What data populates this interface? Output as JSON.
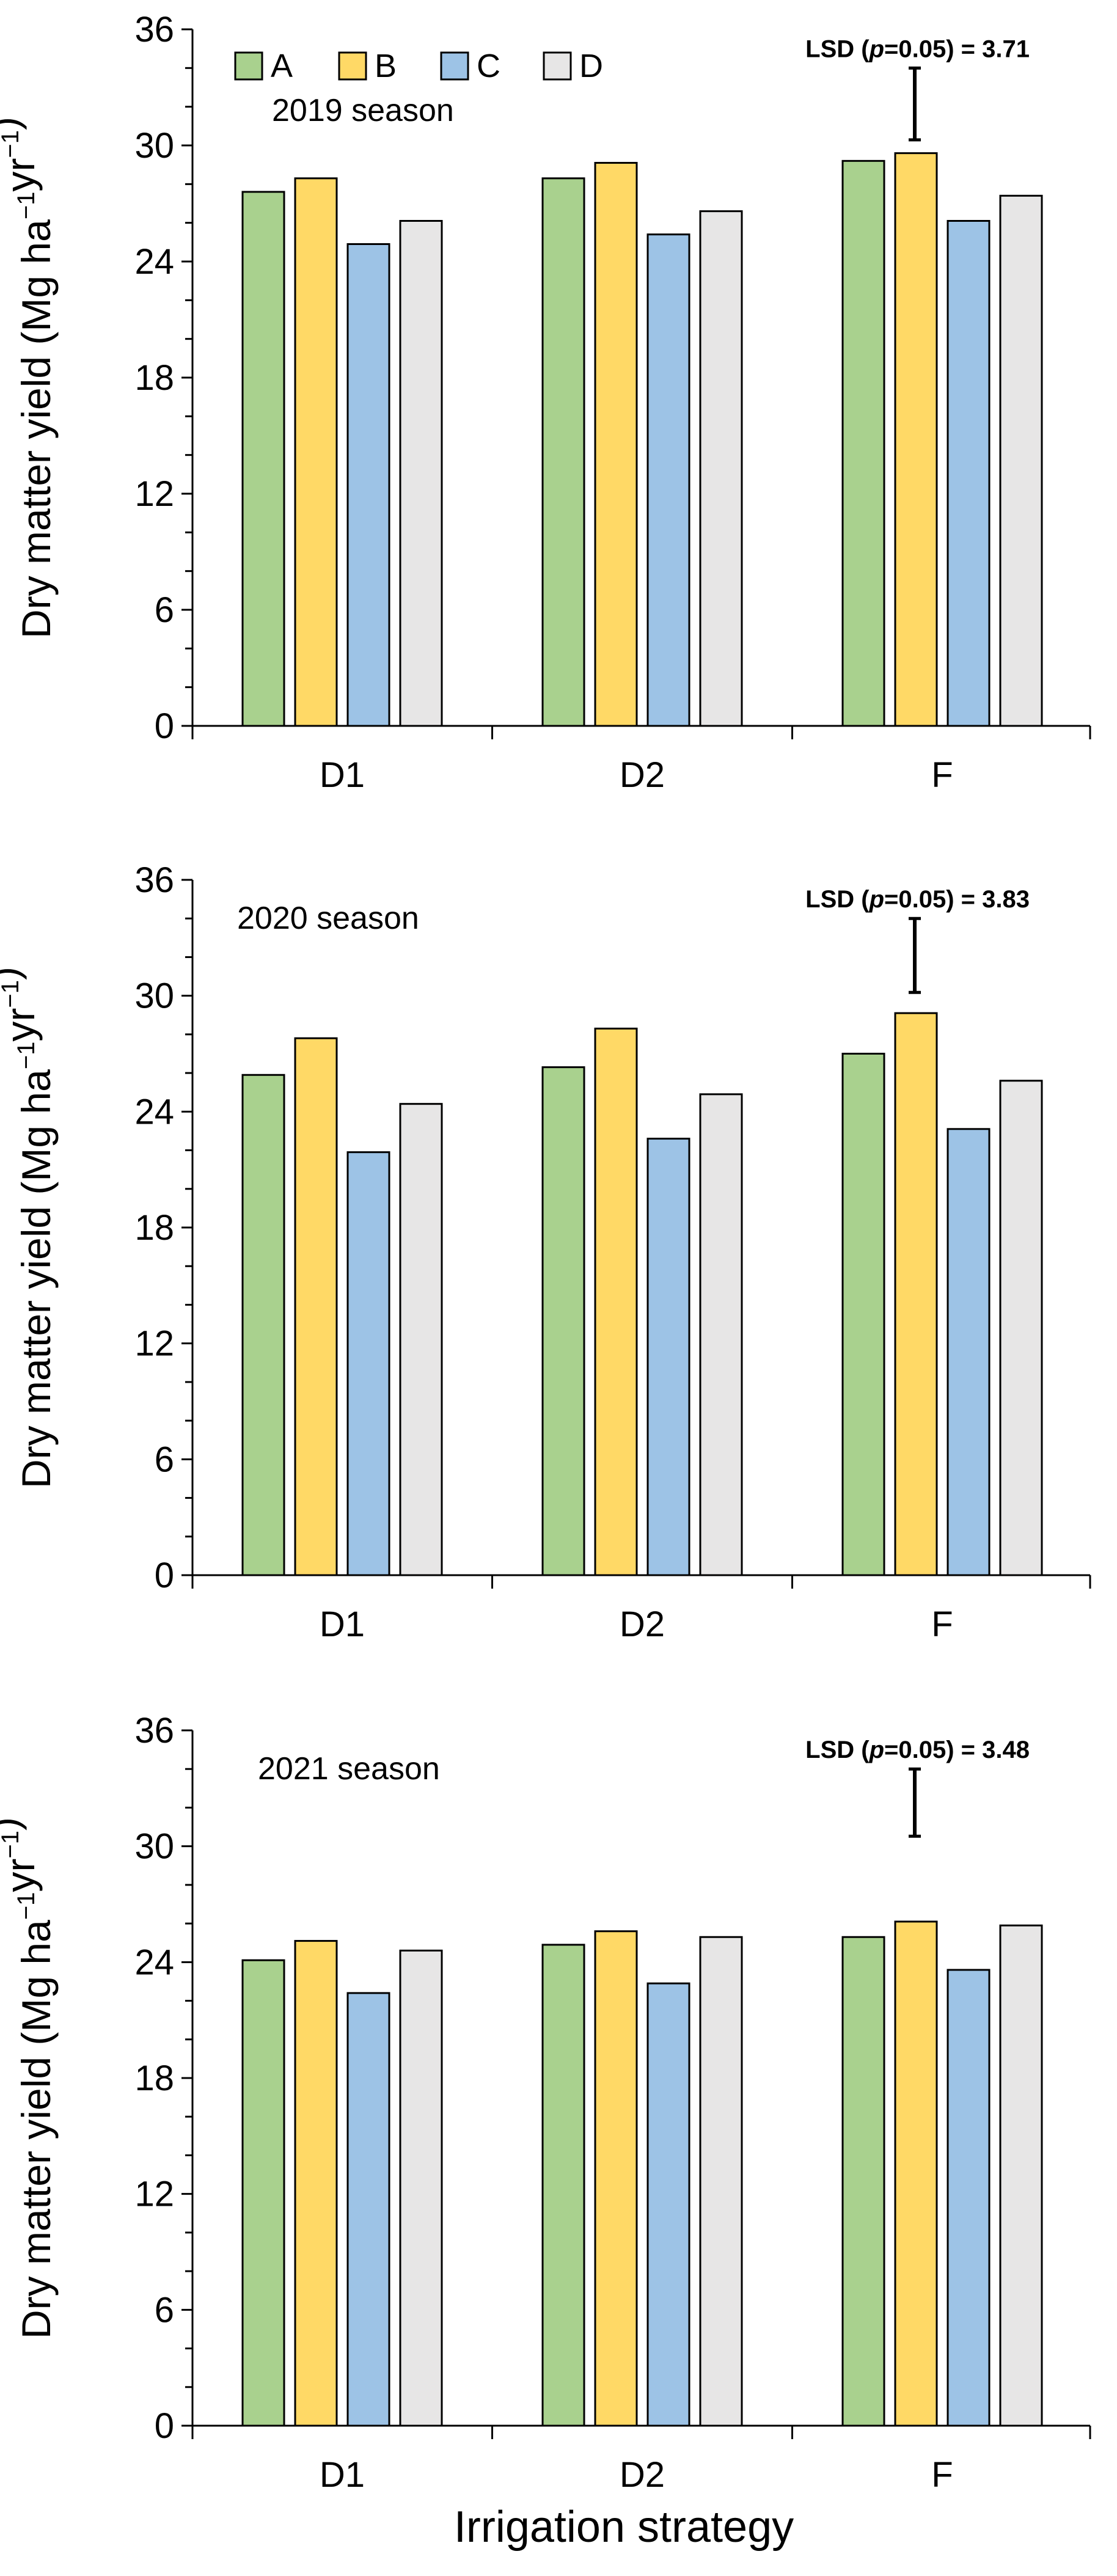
{
  "figure": {
    "xlabel": "Irrigation strategy"
  },
  "colors": {
    "A": "#a9d18e",
    "B": "#ffd966",
    "C": "#9dc3e6",
    "D": "#e7e6e6"
  },
  "chart_data": [
    {
      "type": "bar",
      "title": "2019 season",
      "categories": [
        "D1",
        "D2",
        "F"
      ],
      "series": [
        {
          "name": "A",
          "values": [
            27.6,
            28.3,
            29.2
          ]
        },
        {
          "name": "B",
          "values": [
            28.3,
            29.1,
            29.6
          ]
        },
        {
          "name": "C",
          "values": [
            24.9,
            25.4,
            26.1
          ]
        },
        {
          "name": "D",
          "values": [
            26.1,
            26.6,
            27.4
          ]
        }
      ],
      "ylabel": "Dry matter yield (Mg ha⁻¹yr⁻¹)",
      "ylim": [
        0,
        36
      ],
      "yticks": [
        0,
        6,
        12,
        18,
        24,
        30,
        36
      ],
      "lsd": {
        "label": "LSD (p=0.05) = 3.71",
        "value": 3.71
      },
      "legend": "top-left",
      "grid": false
    },
    {
      "type": "bar",
      "title": "2020 season",
      "categories": [
        "D1",
        "D2",
        "F"
      ],
      "series": [
        {
          "name": "A",
          "values": [
            25.9,
            26.3,
            27.0
          ]
        },
        {
          "name": "B",
          "values": [
            27.8,
            28.3,
            29.1
          ]
        },
        {
          "name": "C",
          "values": [
            21.9,
            22.6,
            23.1
          ]
        },
        {
          "name": "D",
          "values": [
            24.4,
            24.9,
            25.6
          ]
        }
      ],
      "ylabel": "Dry matter yield (Mg ha⁻¹yr⁻¹)",
      "ylim": [
        0,
        36
      ],
      "yticks": [
        0,
        6,
        12,
        18,
        24,
        30,
        36
      ],
      "lsd": {
        "label": "LSD (p=0.05) = 3.83",
        "value": 3.83
      },
      "grid": false
    },
    {
      "type": "bar",
      "title": "2021 season",
      "categories": [
        "D1",
        "D2",
        "F"
      ],
      "series": [
        {
          "name": "A",
          "values": [
            24.1,
            24.9,
            25.3
          ]
        },
        {
          "name": "B",
          "values": [
            25.1,
            25.6,
            26.1
          ]
        },
        {
          "name": "C",
          "values": [
            22.4,
            22.9,
            23.6
          ]
        },
        {
          "name": "D",
          "values": [
            24.6,
            25.3,
            25.9
          ]
        }
      ],
      "ylabel": "Dry matter yield (Mg ha⁻¹yr⁻¹)",
      "ylim": [
        0,
        36
      ],
      "yticks": [
        0,
        6,
        12,
        18,
        24,
        30,
        36
      ],
      "lsd": {
        "label": "LSD (p=0.05) = 3.48",
        "value": 3.48
      },
      "grid": false
    }
  ]
}
